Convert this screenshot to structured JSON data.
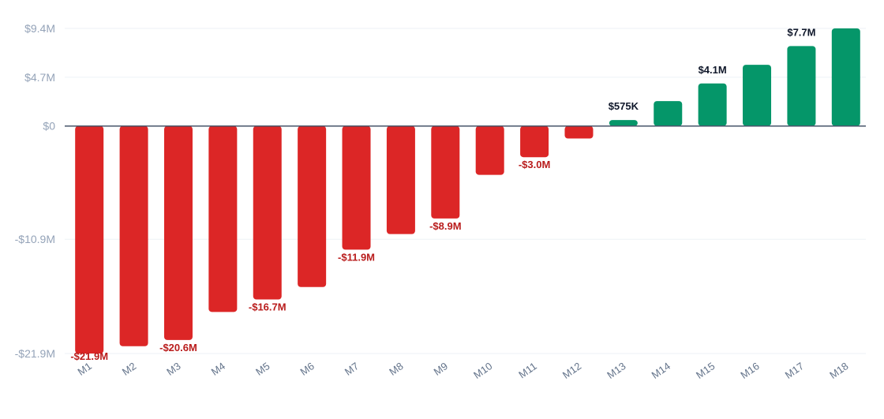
{
  "chart_data": {
    "type": "bar",
    "categories": [
      "M1",
      "M2",
      "M3",
      "M4",
      "M5",
      "M6",
      "M7",
      "M8",
      "M9",
      "M10",
      "M11",
      "M12",
      "M13",
      "M14",
      "M15",
      "M16",
      "M17",
      "M18"
    ],
    "values": [
      -21.9,
      -21.2,
      -20.6,
      -17.9,
      -16.7,
      -15.5,
      -11.9,
      -10.4,
      -8.9,
      -4.7,
      -3.0,
      -1.2,
      0.575,
      2.4,
      4.1,
      5.9,
      7.7,
      9.4
    ],
    "value_unit": "$M",
    "data_labels": [
      {
        "index": 0,
        "text": "-$21.9M"
      },
      {
        "index": 2,
        "text": "-$20.6M"
      },
      {
        "index": 4,
        "text": "-$16.7M"
      },
      {
        "index": 6,
        "text": "-$11.9M"
      },
      {
        "index": 8,
        "text": "-$8.9M"
      },
      {
        "index": 10,
        "text": "-$3.0M"
      },
      {
        "index": 12,
        "text": "$575K"
      },
      {
        "index": 14,
        "text": "$4.1M"
      },
      {
        "index": 16,
        "text": "$7.7M"
      }
    ],
    "y_ticks": [
      {
        "value": 9.4,
        "label": "$9.4M"
      },
      {
        "value": 4.7,
        "label": "$4.7M"
      },
      {
        "value": 0,
        "label": "$0"
      },
      {
        "value": -10.9,
        "label": "-$10.9M"
      },
      {
        "value": -21.9,
        "label": "-$21.9M"
      }
    ],
    "ylim": [
      -21.9,
      9.4
    ],
    "grid": true,
    "legend": "none",
    "colors": {
      "negative": "#dc2626",
      "negative_label": "#b91c1c",
      "positive": "#059669",
      "positive_label": "#0f172a",
      "zero_line": "#475569",
      "grid": "#eef2f6"
    },
    "title": "",
    "xlabel": "",
    "ylabel": ""
  }
}
